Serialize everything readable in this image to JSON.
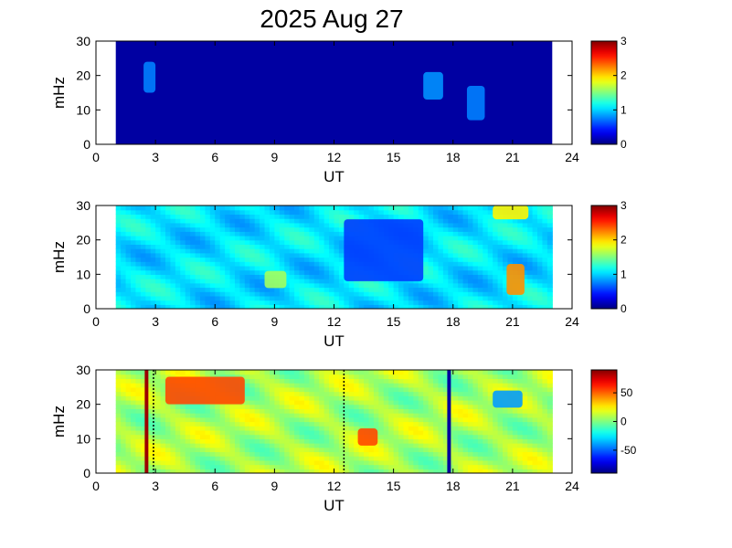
{
  "figure": {
    "title": "2025 Aug 27"
  },
  "colors": {
    "background": "#ffffff",
    "axes": "#000000",
    "jet_low": "#00008f",
    "jet_high": "#800000"
  },
  "chart_data": [
    {
      "type": "heatmap",
      "panel": "top",
      "xlabel": "UT",
      "ylabel": "mHz",
      "xlim": [
        0,
        24
      ],
      "ylim": [
        0,
        30
      ],
      "xticks": [
        "0",
        "3",
        "6",
        "9",
        "12",
        "15",
        "18",
        "21",
        "24"
      ],
      "yticks": [
        "0",
        "10",
        "20",
        "30"
      ],
      "data_extent_ut": [
        1.0,
        23.0
      ],
      "fill_value": 0.1,
      "features": [
        {
          "ut": [
            2.4,
            3.0
          ],
          "mhz": [
            15,
            24
          ],
          "value": 0.75
        },
        {
          "ut": [
            16.5,
            17.5
          ],
          "mhz": [
            13,
            21
          ],
          "value": 0.8
        },
        {
          "ut": [
            18.7,
            19.6
          ],
          "mhz": [
            7,
            17
          ],
          "value": 0.75
        }
      ],
      "colorbar": {
        "range": [
          0,
          3
        ],
        "ticks": [
          "0",
          "1",
          "2",
          "3"
        ]
      }
    },
    {
      "type": "heatmap",
      "panel": "middle",
      "xlabel": "UT",
      "ylabel": "mHz",
      "xlim": [
        0,
        24
      ],
      "ylim": [
        0,
        30
      ],
      "xticks": [
        "0",
        "3",
        "6",
        "9",
        "12",
        "15",
        "18",
        "21",
        "24"
      ],
      "yticks": [
        "0",
        "10",
        "20",
        "30"
      ],
      "data_extent_ut": [
        1.0,
        23.0
      ],
      "base_value_range": [
        0.8,
        1.3
      ],
      "features": [
        {
          "ut": [
            12.5,
            16.5
          ],
          "mhz": [
            8,
            26
          ],
          "value": 0.55
        },
        {
          "ut": [
            20.7,
            21.6
          ],
          "mhz": [
            4,
            13
          ],
          "value": 2.2
        },
        {
          "ut": [
            20.0,
            21.8
          ],
          "mhz": [
            26,
            30
          ],
          "value": 1.9
        },
        {
          "ut": [
            8.5,
            9.6
          ],
          "mhz": [
            6,
            11
          ],
          "value": 1.6
        }
      ],
      "colorbar": {
        "range": [
          0,
          3
        ],
        "ticks": [
          "0",
          "1",
          "2",
          "3"
        ]
      }
    },
    {
      "type": "heatmap",
      "panel": "bottom",
      "xlabel": "UT",
      "ylabel": "mHz",
      "xlim": [
        0,
        24
      ],
      "ylim": [
        0,
        30
      ],
      "xticks": [
        "0",
        "3",
        "6",
        "9",
        "12",
        "15",
        "18",
        "21",
        "24"
      ],
      "yticks": [
        "0",
        "10",
        "20",
        "30"
      ],
      "data_extent_ut": [
        1.0,
        23.0
      ],
      "base_value_range": [
        -10,
        25
      ],
      "features": [
        {
          "ut": [
            3.5,
            7.5
          ],
          "mhz": [
            20,
            28
          ],
          "value": 55
        },
        {
          "ut": [
            13.2,
            14.2
          ],
          "mhz": [
            8,
            13
          ],
          "value": 55
        },
        {
          "ut": [
            20.0,
            21.5
          ],
          "mhz": [
            19,
            24
          ],
          "value": -40
        }
      ],
      "vertical_lines": [
        {
          "ut": 2.55,
          "value": 85
        },
        {
          "ut": 17.8,
          "value": -85
        }
      ],
      "dotted_markers_ut": [
        2.9,
        12.5
      ],
      "colorbar": {
        "range": [
          -90,
          90
        ],
        "ticks": [
          "50",
          "0",
          "-50"
        ]
      }
    }
  ]
}
